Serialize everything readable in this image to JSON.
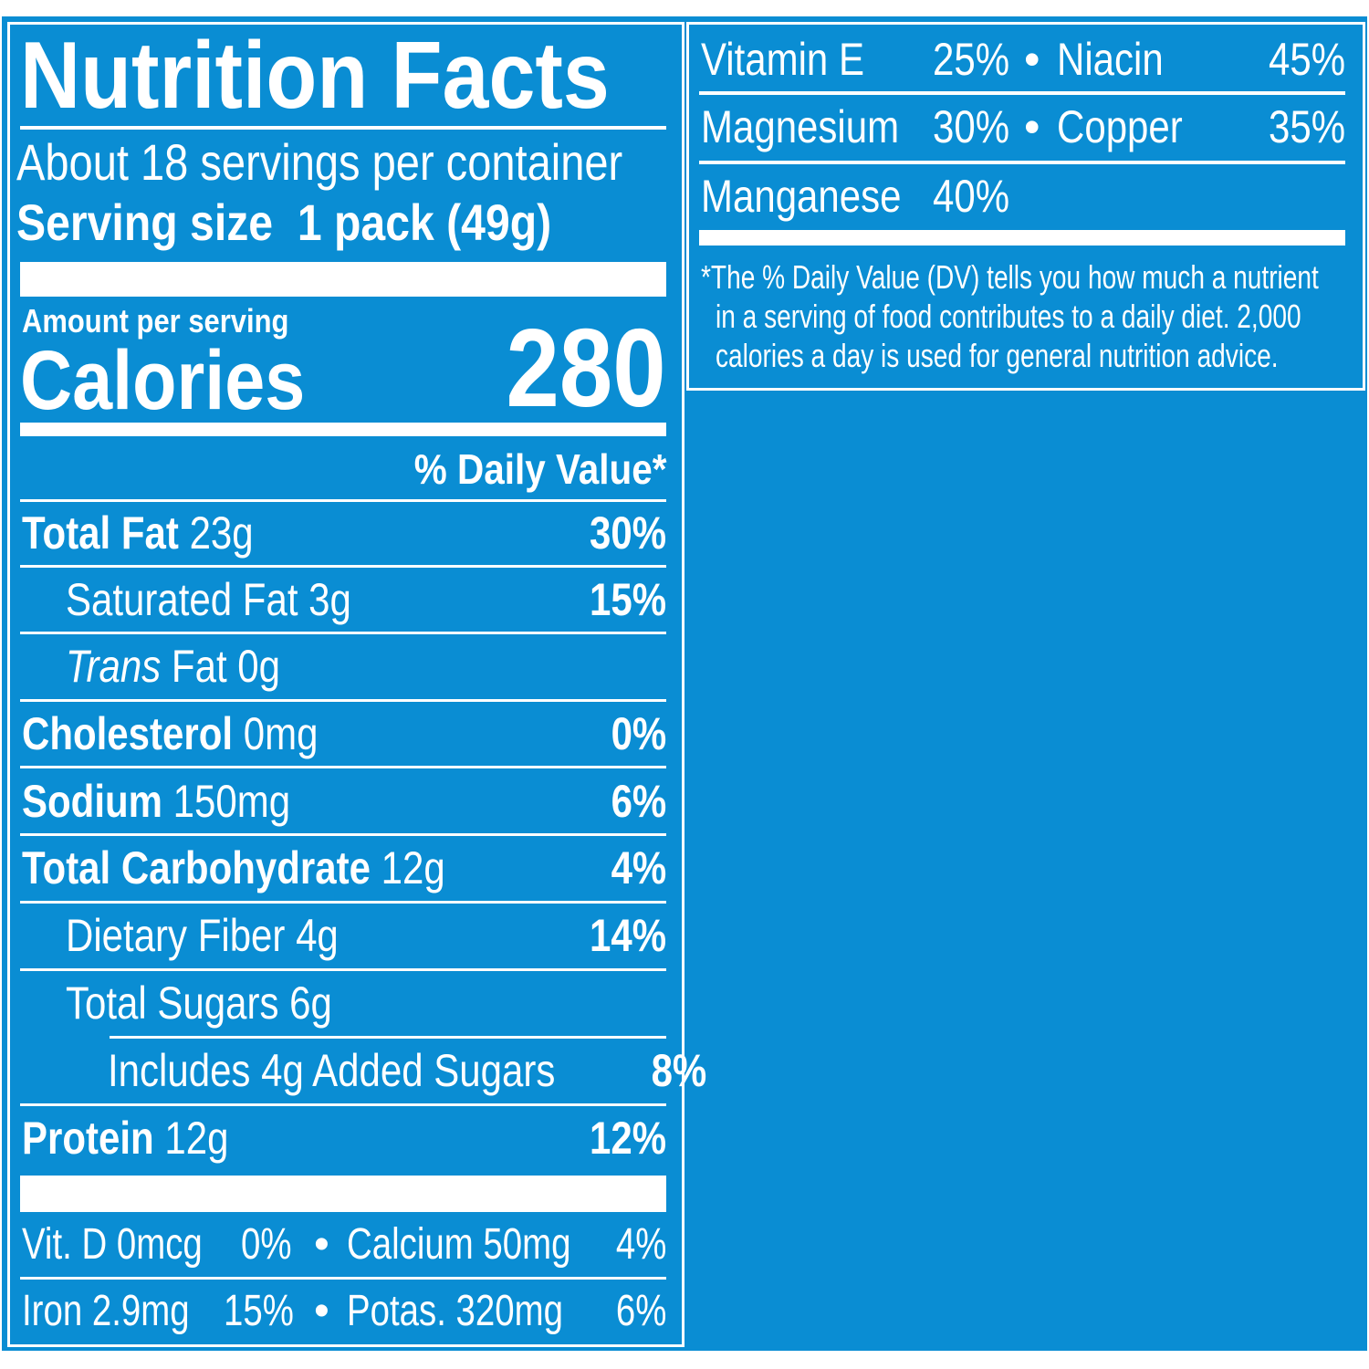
{
  "colors": {
    "background": "#0a8dd3",
    "text": "#ffffff"
  },
  "title": "Nutrition Facts",
  "servings_per_container": "About 18 servings per container",
  "serving_size_label": "Serving size",
  "serving_size_value": "1 pack (49g)",
  "amount_per_serving": "Amount per serving",
  "calories_label": "Calories",
  "calories_value": "280",
  "daily_value_header": "% Daily Value*",
  "nutrients": [
    {
      "name": "Total Fat",
      "amount": "23g",
      "dv": "30%"
    },
    {
      "name": "Saturated Fat",
      "amount": "3g",
      "dv": "15%"
    },
    {
      "name_italic": "Trans",
      "name": "Fat",
      "amount": "0g",
      "dv": ""
    },
    {
      "name": "Cholesterol",
      "amount": "0mg",
      "dv": "0%"
    },
    {
      "name": "Sodium",
      "amount": "150mg",
      "dv": "6%"
    },
    {
      "name": "Total Carbohydrate",
      "amount": "12g",
      "dv": "4%"
    },
    {
      "name": "Dietary Fiber",
      "amount": "4g",
      "dv": "14%"
    },
    {
      "name": "Total Sugars",
      "amount": "6g",
      "dv": ""
    },
    {
      "name": "Includes 4g Added Sugars",
      "amount": "",
      "dv": "8%"
    },
    {
      "name": "Protein",
      "amount": "12g",
      "dv": "12%"
    }
  ],
  "micronutrients_left": [
    {
      "items": [
        {
          "name": "Vit. D 0mcg",
          "dv": "0%"
        },
        {
          "name": "Calcium 50mg",
          "dv": "4%"
        }
      ]
    },
    {
      "items": [
        {
          "name": "Iron 2.9mg",
          "dv": "15%"
        },
        {
          "name": "Potas. 320mg",
          "dv": "6%"
        }
      ]
    }
  ],
  "bullet": "•",
  "micronutrients_right": [
    {
      "items": [
        {
          "name": "Vitamin E",
          "dv": "25%"
        },
        {
          "name": "Niacin",
          "dv": "45%"
        }
      ]
    },
    {
      "items": [
        {
          "name": "Magnesium",
          "dv": "30%"
        },
        {
          "name": "Copper",
          "dv": "35%"
        }
      ]
    },
    {
      "items": [
        {
          "name": "Manganese",
          "dv": "40%"
        }
      ]
    }
  ],
  "footnote": [
    "*The % Daily Value (DV) tells you how much a nutrient",
    "in a serving of food contributes to a daily diet. 2,000",
    "calories a day is used for general nutrition advice."
  ]
}
